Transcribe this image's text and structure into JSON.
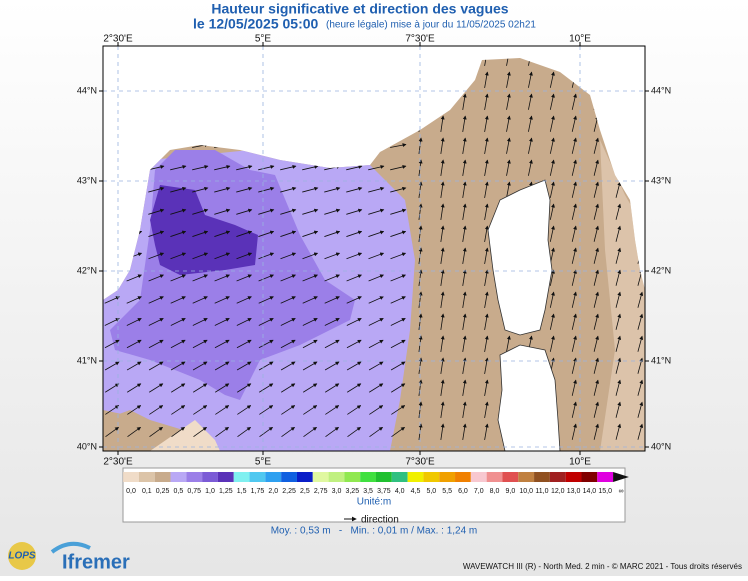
{
  "header": {
    "title": "Hauteur significative et direction des vagues",
    "date": "le 12/05/2025 05:00",
    "note": "(heure légale) mise à jour du 11/05/2025 02h21"
  },
  "map": {
    "lon_labels": [
      "2°30'E",
      "5°E",
      "7°30'E",
      "10°E"
    ],
    "lat_labels": [
      "44°N",
      "43°N",
      "42°N",
      "41°N",
      "40°N"
    ]
  },
  "legend": {
    "labels": [
      "0,0",
      "0,1",
      "0,25",
      "0,5",
      "0,75",
      "1,0",
      "1,25",
      "1,5",
      "1,75",
      "2,0",
      "2,25",
      "2,5",
      "2,75",
      "3,0",
      "3,25",
      "3,5",
      "3,75",
      "4,0",
      "4,5",
      "5,0",
      "5,5",
      "6,0",
      "7,0",
      "8,0",
      "9,0",
      "10,0",
      "11,0",
      "12,0",
      "13,0",
      "14,0",
      "15,0",
      "∞"
    ],
    "colors": [
      "#f0dcc8",
      "#dcc4a8",
      "#c8ab8c",
      "#b9a8f5",
      "#9b7fe8",
      "#7b5bd6",
      "#5a32b8",
      "#80f0f0",
      "#50c8f0",
      "#2ea0f0",
      "#1060e0",
      "#0a1ec8",
      "#e0f8a0",
      "#c0f080",
      "#90e850",
      "#40e040",
      "#20c030",
      "#30c080",
      "#f0f000",
      "#f0c800",
      "#f0a000",
      "#f08000",
      "#f8c8d0",
      "#f09090",
      "#e05050",
      "#c08040",
      "#905020",
      "#a02020",
      "#c00000",
      "#800000",
      "#e000e0",
      "#900090"
    ],
    "unit": "Unité:m",
    "direction": "direction"
  },
  "stats": "Moy. : 0,53 m   -   Min. : 0,01 m / Max. : 1,24 m",
  "footer": {
    "credit": "WAVEWATCH III (R) - North Med. 2 min - © MARC 2021 - Tous droits réservés",
    "logo_small": "LOPS",
    "logo_main": "Ifremer"
  }
}
